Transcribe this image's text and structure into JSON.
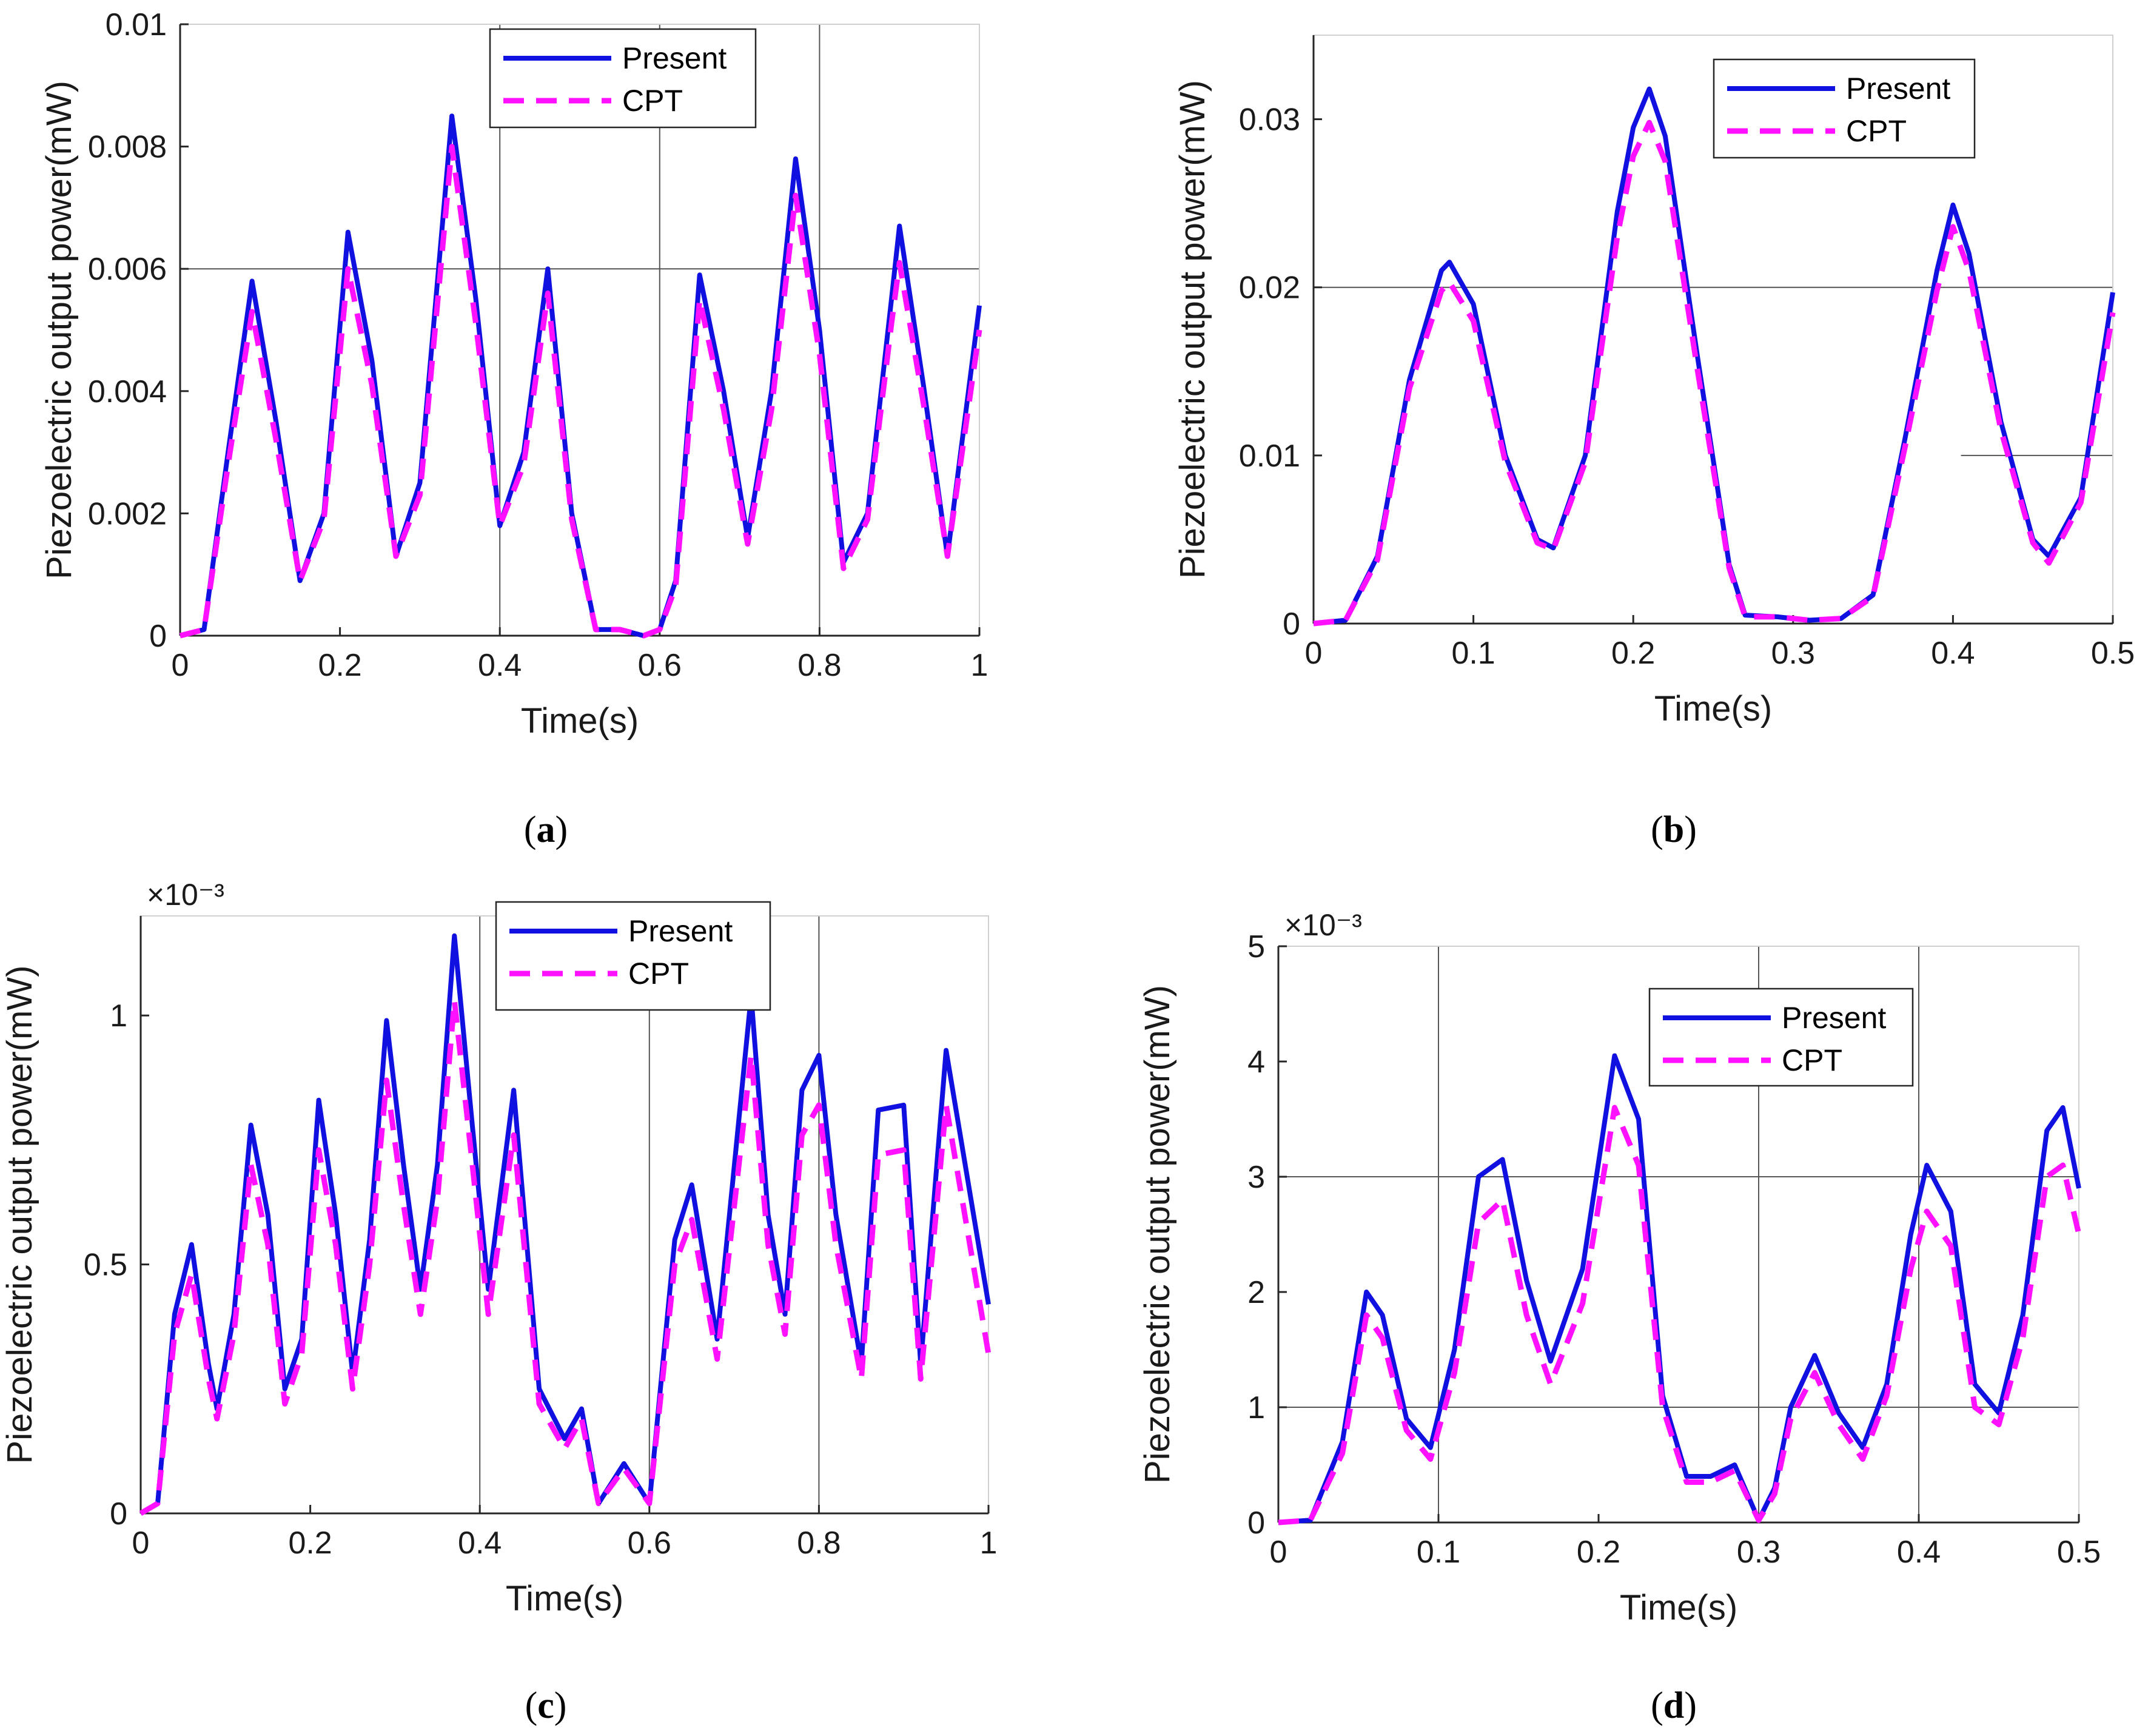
{
  "chart_data": [
    {
      "type": "line",
      "panel_label": "a",
      "xlabel": "Time(s)",
      "ylabel": "Piezoelectric output power(mW)",
      "xlim": [
        0,
        1
      ],
      "ylim": [
        0,
        0.01
      ],
      "xticks": [
        0,
        0.2,
        0.4,
        0.6,
        0.8,
        1
      ],
      "xtick_labels": [
        "0",
        "0.2",
        "0.4",
        "0.6",
        "0.8",
        "1"
      ],
      "yticks": [
        0,
        0.002,
        0.004,
        0.006,
        0.008,
        0.01
      ],
      "ytick_labels": [
        "0",
        "0.002",
        "0.004",
        "0.006",
        "0.008",
        "0.01"
      ],
      "exponent_label": "",
      "legend_position": "top-center",
      "series": [
        {
          "name": "Present",
          "color": "#1010e0",
          "style": "solid",
          "x": [
            0,
            0.03,
            0.06,
            0.09,
            0.12,
            0.15,
            0.18,
            0.21,
            0.24,
            0.27,
            0.3,
            0.34,
            0.37,
            0.4,
            0.43,
            0.46,
            0.49,
            0.52,
            0.55,
            0.58,
            0.6,
            0.62,
            0.65,
            0.68,
            0.71,
            0.74,
            0.77,
            0.8,
            0.83,
            0.86,
            0.89,
            0.9,
            0.93,
            0.96,
            1.0
          ],
          "y": [
            0,
            0.0001,
            0.003,
            0.0058,
            0.0035,
            0.0009,
            0.002,
            0.0066,
            0.0045,
            0.0013,
            0.0025,
            0.0085,
            0.0055,
            0.0018,
            0.003,
            0.006,
            0.002,
            0.0001,
            0.0001,
            0,
            0.0001,
            0.0009,
            0.0059,
            0.004,
            0.0016,
            0.004,
            0.0078,
            0.005,
            0.0012,
            0.002,
            0.0055,
            0.0067,
            0.0041,
            0.0013,
            0.0054
          ]
        },
        {
          "name": "CPT",
          "color": "#ff10ff",
          "style": "dashed",
          "x": [
            0,
            0.03,
            0.06,
            0.09,
            0.12,
            0.15,
            0.18,
            0.21,
            0.24,
            0.27,
            0.3,
            0.34,
            0.37,
            0.4,
            0.43,
            0.46,
            0.49,
            0.52,
            0.55,
            0.58,
            0.6,
            0.62,
            0.65,
            0.68,
            0.71,
            0.74,
            0.77,
            0.8,
            0.83,
            0.86,
            0.89,
            0.9,
            0.93,
            0.96,
            1.0
          ],
          "y": [
            0,
            0.0001,
            0.0028,
            0.0053,
            0.0032,
            0.0009,
            0.0019,
            0.006,
            0.0041,
            0.0013,
            0.0023,
            0.008,
            0.0051,
            0.0018,
            0.0028,
            0.0056,
            0.0019,
            0.0001,
            0.0001,
            0,
            0.0001,
            0.0008,
            0.0055,
            0.0037,
            0.0015,
            0.0037,
            0.0072,
            0.0046,
            0.0011,
            0.0019,
            0.0051,
            0.0061,
            0.0038,
            0.0013,
            0.005
          ]
        }
      ],
      "gridlines": [
        {
          "axis": "x",
          "value": 0.4
        },
        {
          "axis": "x",
          "value": 0.6
        },
        {
          "axis": "x",
          "value": 0.8
        },
        {
          "axis": "y",
          "value": 0.006
        }
      ]
    },
    {
      "type": "line",
      "panel_label": "b",
      "xlabel": "Time(s)",
      "ylabel": "Piezoelectric output power(mW)",
      "xlim": [
        0,
        0.5
      ],
      "ylim": [
        0,
        0.035
      ],
      "xticks": [
        0,
        0.1,
        0.2,
        0.3,
        0.4,
        0.5
      ],
      "xtick_labels": [
        "0",
        "0.1",
        "0.2",
        "0.3",
        "0.4",
        "0.5"
      ],
      "yticks": [
        0,
        0.01,
        0.02,
        0.03
      ],
      "ytick_labels": [
        "0",
        "0.01",
        "0.02",
        "0.03"
      ],
      "exponent_label": "",
      "legend_position": "top-right",
      "series": [
        {
          "name": "Present",
          "color": "#1010e0",
          "style": "solid",
          "x": [
            0,
            0.02,
            0.04,
            0.06,
            0.08,
            0.085,
            0.1,
            0.12,
            0.14,
            0.15,
            0.17,
            0.19,
            0.2,
            0.21,
            0.22,
            0.24,
            0.26,
            0.27,
            0.29,
            0.31,
            0.33,
            0.35,
            0.37,
            0.39,
            0.4,
            0.41,
            0.43,
            0.45,
            0.46,
            0.48,
            0.5
          ],
          "y": [
            0,
            0.0002,
            0.004,
            0.0145,
            0.021,
            0.0215,
            0.019,
            0.01,
            0.005,
            0.0045,
            0.01,
            0.0245,
            0.0295,
            0.0318,
            0.029,
            0.016,
            0.0035,
            0.0005,
            0.0004,
            0.0002,
            0.0003,
            0.0017,
            0.011,
            0.021,
            0.0249,
            0.022,
            0.012,
            0.005,
            0.004,
            0.0075,
            0.0197
          ]
        },
        {
          "name": "CPT",
          "color": "#ff10ff",
          "style": "dashed",
          "x": [
            0,
            0.02,
            0.04,
            0.06,
            0.08,
            0.085,
            0.1,
            0.12,
            0.14,
            0.15,
            0.17,
            0.19,
            0.2,
            0.21,
            0.22,
            0.24,
            0.26,
            0.27,
            0.29,
            0.31,
            0.33,
            0.35,
            0.37,
            0.39,
            0.4,
            0.41,
            0.43,
            0.45,
            0.46,
            0.48,
            0.5
          ],
          "y": [
            0,
            0.0002,
            0.0038,
            0.014,
            0.0198,
            0.0203,
            0.018,
            0.0096,
            0.0048,
            0.0044,
            0.0096,
            0.023,
            0.0278,
            0.0298,
            0.0275,
            0.0152,
            0.0033,
            0.0004,
            0.0004,
            0.0002,
            0.0003,
            0.0016,
            0.0105,
            0.0198,
            0.0236,
            0.021,
            0.0115,
            0.0048,
            0.0036,
            0.0072,
            0.0185
          ]
        }
      ],
      "gridlines": [
        {
          "axis": "y",
          "value": 0.02
        },
        {
          "axis": "hseg",
          "value": 0.01,
          "from": 0.405,
          "to": 0.5
        }
      ]
    },
    {
      "type": "line",
      "panel_label": "c",
      "xlabel": "Time(s)",
      "ylabel": "Piezoelectric output power(mW)",
      "xlim": [
        0,
        1
      ],
      "ylim": [
        0,
        0.0012
      ],
      "xticks": [
        0,
        0.2,
        0.4,
        0.6,
        0.8,
        1
      ],
      "xtick_labels": [
        "0",
        "0.2",
        "0.4",
        "0.6",
        "0.8",
        "1"
      ],
      "yticks": [
        0,
        0.0005,
        0.001
      ],
      "ytick_labels": [
        "0",
        "0.5",
        "1"
      ],
      "exponent_label": "×10⁻³",
      "legend_position": "top-center",
      "series": [
        {
          "name": "Present",
          "color": "#1010e0",
          "style": "solid",
          "x": [
            0,
            0.02,
            0.04,
            0.06,
            0.08,
            0.09,
            0.11,
            0.13,
            0.15,
            0.17,
            0.19,
            0.21,
            0.23,
            0.25,
            0.27,
            0.29,
            0.31,
            0.33,
            0.35,
            0.37,
            0.39,
            0.41,
            0.44,
            0.47,
            0.5,
            0.52,
            0.54,
            0.57,
            0.6,
            0.63,
            0.65,
            0.68,
            0.72,
            0.74,
            0.76,
            0.78,
            0.8,
            0.82,
            0.85,
            0.87,
            0.9,
            0.92,
            0.95,
            1.0
          ],
          "y": [
            0,
            2e-05,
            0.0004,
            0.00054,
            0.0003,
            0.00021,
            0.0004,
            0.00078,
            0.0006,
            0.00025,
            0.00035,
            0.00083,
            0.0006,
            0.00028,
            0.00055,
            0.00099,
            0.0007,
            0.00045,
            0.0007,
            0.00116,
            0.0008,
            0.00045,
            0.00085,
            0.00025,
            0.00015,
            0.00021,
            2e-05,
            0.0001,
            2e-05,
            0.00055,
            0.00066,
            0.00035,
            0.00104,
            0.0006,
            0.0004,
            0.00085,
            0.00092,
            0.0006,
            0.0003,
            0.00081,
            0.00082,
            0.0003,
            0.00093,
            0.00042
          ]
        },
        {
          "name": "CPT",
          "color": "#ff10ff",
          "style": "dashed",
          "x": [
            0,
            0.02,
            0.04,
            0.06,
            0.08,
            0.09,
            0.11,
            0.13,
            0.15,
            0.17,
            0.19,
            0.21,
            0.23,
            0.25,
            0.27,
            0.29,
            0.31,
            0.33,
            0.35,
            0.37,
            0.39,
            0.41,
            0.44,
            0.47,
            0.5,
            0.52,
            0.54,
            0.57,
            0.6,
            0.63,
            0.65,
            0.68,
            0.72,
            0.74,
            0.76,
            0.78,
            0.8,
            0.82,
            0.85,
            0.87,
            0.9,
            0.92,
            0.95,
            1.0
          ],
          "y": [
            0,
            2e-05,
            0.00036,
            0.00048,
            0.00027,
            0.00019,
            0.00036,
            0.0007,
            0.00054,
            0.00022,
            0.00032,
            0.00073,
            0.00054,
            0.00025,
            0.0005,
            0.00087,
            0.00062,
            0.0004,
            0.00063,
            0.00103,
            0.00072,
            0.0004,
            0.00076,
            0.00022,
            0.00013,
            0.00019,
            2e-05,
            9e-05,
            2e-05,
            0.0005,
            0.00059,
            0.00031,
            0.00092,
            0.00054,
            0.00036,
            0.00076,
            0.00082,
            0.00054,
            0.00027,
            0.00072,
            0.00073,
            0.00027,
            0.00082,
            0.00032
          ]
        }
      ],
      "gridlines": [
        {
          "axis": "x",
          "value": 0.4
        },
        {
          "axis": "x",
          "value": 0.6
        },
        {
          "axis": "x",
          "value": 0.8
        }
      ]
    },
    {
      "type": "line",
      "panel_label": "d",
      "xlabel": "Time(s)",
      "ylabel": "Piezoelectric output power(mW)",
      "xlim": [
        0,
        0.5
      ],
      "ylim": [
        0,
        0.005
      ],
      "xticks": [
        0,
        0.1,
        0.2,
        0.3,
        0.4,
        0.5
      ],
      "xtick_labels": [
        "0",
        "0.1",
        "0.2",
        "0.3",
        "0.4",
        "0.5"
      ],
      "yticks": [
        0,
        0.001,
        0.002,
        0.003,
        0.004,
        0.005
      ],
      "ytick_labels": [
        "0",
        "1",
        "2",
        "3",
        "4",
        "5"
      ],
      "exponent_label": "×10⁻³",
      "legend_position": "top-center",
      "series": [
        {
          "name": "Present",
          "color": "#1010e0",
          "style": "solid",
          "x": [
            0,
            0.02,
            0.04,
            0.055,
            0.065,
            0.08,
            0.095,
            0.11,
            0.125,
            0.14,
            0.155,
            0.17,
            0.19,
            0.21,
            0.225,
            0.24,
            0.255,
            0.27,
            0.285,
            0.3,
            0.31,
            0.32,
            0.335,
            0.35,
            0.365,
            0.38,
            0.395,
            0.405,
            0.42,
            0.435,
            0.45,
            0.465,
            0.48,
            0.49,
            0.5
          ],
          "y": [
            0,
            2e-05,
            0.0007,
            0.002,
            0.0018,
            0.0009,
            0.00065,
            0.0015,
            0.003,
            0.00315,
            0.0021,
            0.0014,
            0.0022,
            0.00405,
            0.0035,
            0.0011,
            0.0004,
            0.0004,
            0.0005,
            2e-05,
            0.0003,
            0.001,
            0.00145,
            0.00095,
            0.00065,
            0.0012,
            0.0025,
            0.0031,
            0.0027,
            0.0012,
            0.00095,
            0.0018,
            0.0034,
            0.0036,
            0.0029
          ]
        },
        {
          "name": "CPT",
          "color": "#ff10ff",
          "style": "dashed",
          "x": [
            0,
            0.02,
            0.04,
            0.055,
            0.065,
            0.08,
            0.095,
            0.11,
            0.125,
            0.14,
            0.155,
            0.17,
            0.19,
            0.21,
            0.225,
            0.24,
            0.255,
            0.27,
            0.285,
            0.3,
            0.31,
            0.32,
            0.335,
            0.35,
            0.365,
            0.38,
            0.395,
            0.405,
            0.42,
            0.435,
            0.45,
            0.465,
            0.48,
            0.49,
            0.5
          ],
          "y": [
            0,
            2e-05,
            0.0006,
            0.0018,
            0.0016,
            0.0008,
            0.00055,
            0.0013,
            0.0026,
            0.0028,
            0.0018,
            0.0012,
            0.0019,
            0.0036,
            0.0031,
            0.001,
            0.00035,
            0.00035,
            0.00045,
            2e-05,
            0.00025,
            0.0009,
            0.0013,
            0.00085,
            0.00055,
            0.0011,
            0.0022,
            0.0027,
            0.0024,
            0.001,
            0.00085,
            0.0016,
            0.003,
            0.0031,
            0.0025
          ]
        }
      ],
      "gridlines": [
        {
          "axis": "x",
          "value": 0.1
        },
        {
          "axis": "x",
          "value": 0.3
        },
        {
          "axis": "x",
          "value": 0.4
        },
        {
          "axis": "y",
          "value": 0.001
        },
        {
          "axis": "y",
          "value": 0.003
        }
      ]
    }
  ],
  "captions": [
    {
      "open": "(",
      "label": "a",
      "close": ")"
    },
    {
      "open": "(",
      "label": "b",
      "close": ")"
    },
    {
      "open": "(",
      "label": "c",
      "close": ")"
    },
    {
      "open": "(",
      "label": "d",
      "close": ")"
    }
  ]
}
